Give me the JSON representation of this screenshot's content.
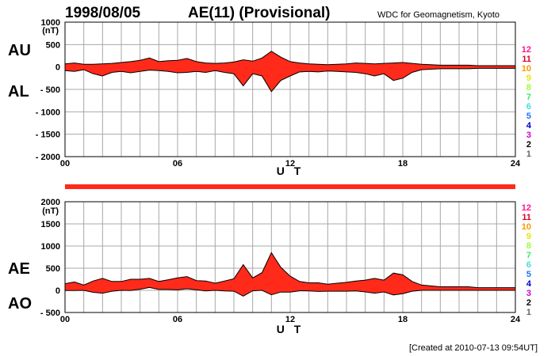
{
  "header": {
    "date": "1998/08/05",
    "title": "AE(11) (Provisional)",
    "source": "WDC for Geomagnetism, Kyoto"
  },
  "footer": {
    "created": "[Created at 2010-07-13 09:54UT]"
  },
  "colors": {
    "fill": "#ff2a1a",
    "outline": "#000000",
    "grid": "#a8a8a8",
    "band": "#ff2a1a",
    "station_numbers": [
      "#ff1493",
      "#e0002a",
      "#ff9900",
      "#e6e600",
      "#99ff33",
      "#33ee66",
      "#44dddd",
      "#1a73ff",
      "#0000cc",
      "#cc00cc",
      "#000000",
      "#666666",
      "#bbbbbb"
    ]
  },
  "chart_data": [
    {
      "type": "area",
      "series_labels_top": "AU",
      "series_labels_bottom": "AL",
      "unit": "(nT)",
      "xlabel": "U T",
      "xlim": [
        0,
        24
      ],
      "xticks": [
        "00",
        "06",
        "12",
        "18",
        "24"
      ],
      "ylim": [
        -2000,
        1000
      ],
      "yticks": [
        "1000",
        "500",
        "0",
        "- 500",
        "- 1000",
        "- 1500",
        "- 2000"
      ],
      "station_numbers": [
        "12",
        "11",
        "10",
        "9",
        "8",
        "7",
        "6",
        "5",
        "4",
        "3",
        "2",
        "1"
      ],
      "x": [
        0,
        0.5,
        1,
        1.5,
        2,
        2.5,
        3,
        3.5,
        4,
        4.5,
        5,
        5.5,
        6,
        6.5,
        7,
        7.5,
        8,
        8.5,
        9,
        9.5,
        10,
        10.5,
        11,
        11.5,
        12,
        12.5,
        13,
        13.5,
        14,
        14.5,
        15,
        15.5,
        16,
        16.5,
        17,
        17.5,
        18,
        18.5,
        19,
        19.5,
        20,
        20.5,
        21,
        21.5,
        22,
        22.5,
        23,
        23.5,
        24
      ],
      "series": [
        {
          "name": "AU",
          "values": [
            70,
            90,
            60,
            60,
            70,
            80,
            100,
            120,
            150,
            200,
            120,
            140,
            150,
            190,
            120,
            90,
            80,
            90,
            110,
            160,
            130,
            200,
            350,
            220,
            120,
            90,
            70,
            60,
            50,
            60,
            70,
            90,
            80,
            70,
            80,
            90,
            100,
            80,
            60,
            50,
            40,
            40,
            40,
            40,
            30,
            30,
            30,
            30,
            30
          ]
        },
        {
          "name": "AL",
          "values": [
            -80,
            -100,
            -60,
            -150,
            -200,
            -120,
            -100,
            -130,
            -100,
            -70,
            -80,
            -100,
            -130,
            -120,
            -100,
            -120,
            -80,
            -120,
            -150,
            -420,
            -150,
            -200,
            -550,
            -300,
            -200,
            -110,
            -100,
            -110,
            -90,
            -100,
            -110,
            -120,
            -150,
            -200,
            -150,
            -300,
            -250,
            -120,
            -60,
            -50,
            -40,
            -40,
            -40,
            -40,
            -30,
            -30,
            -30,
            -30,
            -30
          ]
        }
      ]
    },
    {
      "type": "area",
      "series_labels_top": "AE",
      "series_labels_bottom": "AO",
      "unit": "(nT)",
      "xlabel": "U T",
      "xlim": [
        0,
        24
      ],
      "xticks": [
        "00",
        "06",
        "12",
        "18",
        "24"
      ],
      "ylim": [
        -500,
        2000
      ],
      "yticks": [
        "2000",
        "1500",
        "1000",
        "500",
        "0",
        "- 500"
      ],
      "station_numbers": [
        "12",
        "11",
        "10",
        "9",
        "8",
        "7",
        "6",
        "5",
        "4",
        "3",
        "2",
        "1"
      ],
      "x": [
        0,
        0.5,
        1,
        1.5,
        2,
        2.5,
        3,
        3.5,
        4,
        4.5,
        5,
        5.5,
        6,
        6.5,
        7,
        7.5,
        8,
        8.5,
        9,
        9.5,
        10,
        10.5,
        11,
        11.5,
        12,
        12.5,
        13,
        13.5,
        14,
        14.5,
        15,
        15.5,
        16,
        16.5,
        17,
        17.5,
        18,
        18.5,
        19,
        19.5,
        20,
        20.5,
        21,
        21.5,
        22,
        22.5,
        23,
        23.5,
        24
      ],
      "series": [
        {
          "name": "AE",
          "values": [
            150,
            190,
            120,
            210,
            270,
            200,
            200,
            250,
            250,
            270,
            200,
            240,
            280,
            310,
            220,
            210,
            160,
            210,
            260,
            580,
            280,
            400,
            850,
            520,
            320,
            200,
            170,
            170,
            140,
            160,
            180,
            210,
            230,
            270,
            230,
            390,
            350,
            200,
            120,
            100,
            80,
            80,
            80,
            80,
            60,
            60,
            60,
            60,
            60
          ]
        },
        {
          "name": "AO",
          "values": [
            -5,
            -5,
            0,
            -45,
            -65,
            -20,
            0,
            -5,
            25,
            65,
            20,
            20,
            10,
            35,
            10,
            -15,
            0,
            -15,
            -20,
            -130,
            -10,
            0,
            -100,
            -40,
            -40,
            -10,
            -15,
            -25,
            -20,
            -20,
            -20,
            -15,
            -35,
            -65,
            -35,
            -105,
            -75,
            -20,
            0,
            0,
            0,
            0,
            0,
            0,
            0,
            0,
            0,
            0,
            0
          ]
        }
      ]
    }
  ]
}
